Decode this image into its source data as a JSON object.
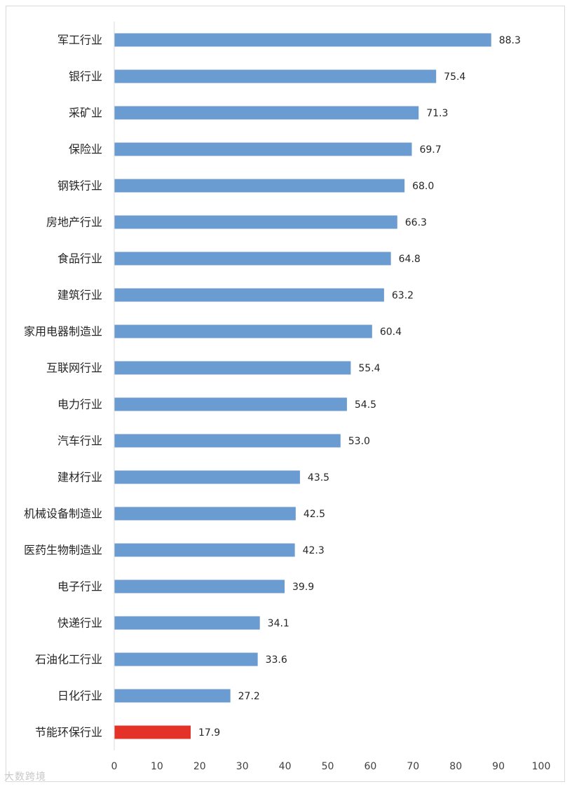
{
  "chart_data": {
    "type": "bar",
    "orientation": "horizontal",
    "categories": [
      "军工行业",
      "银行业",
      "采矿业",
      "保险业",
      "钢铁行业",
      "房地产行业",
      "食品行业",
      "建筑行业",
      "家用电器制造业",
      "互联网行业",
      "电力行业",
      "汽车行业",
      "建材行业",
      "机械设备制造业",
      "医药生物制造业",
      "电子行业",
      "快递行业",
      "石油化工行业",
      "日化行业",
      "节能环保行业"
    ],
    "values": [
      88.3,
      75.4,
      71.3,
      69.7,
      68.0,
      66.3,
      64.8,
      63.2,
      60.4,
      55.4,
      54.5,
      53.0,
      43.5,
      42.5,
      42.3,
      39.9,
      34.1,
      33.6,
      27.2,
      17.9
    ],
    "value_labels": [
      "88.3",
      "75.4",
      "71.3",
      "69.7",
      "68.0",
      "66.3",
      "64.8",
      "63.2",
      "60.4",
      "55.4",
      "54.5",
      "53.0",
      "43.5",
      "42.5",
      "42.3",
      "39.9",
      "34.1",
      "33.6",
      "27.2",
      "17.9"
    ],
    "xlim": [
      0,
      100
    ],
    "xticks": [
      "0",
      "10",
      "20",
      "30",
      "40",
      "50",
      "60",
      "70",
      "80",
      "90",
      "100"
    ],
    "bar_color": "#6a9bd1",
    "highlight_color": "#e53228",
    "highlight_category": "节能环保行业",
    "grid": false,
    "legend": "none"
  },
  "watermark": "大数跨境"
}
